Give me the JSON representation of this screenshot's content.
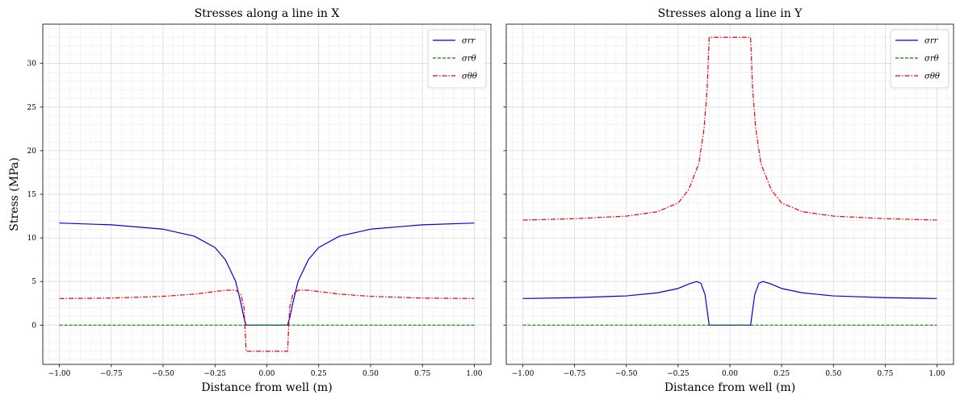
{
  "chart_data": [
    {
      "type": "line",
      "title": "Stresses along a line in X",
      "xlabel": "Distance from well (m)",
      "ylabel": "Stress (MPa)",
      "xlim": [
        -1.08,
        1.08
      ],
      "ylim": [
        -4.5,
        34.5
      ],
      "xticks": [
        "-1.00",
        "-0.75",
        "-0.50",
        "-0.25",
        "0.00",
        "0.25",
        "0.50",
        "0.75",
        "1.00"
      ],
      "yticks": [
        "0",
        "5",
        "10",
        "15",
        "20",
        "25",
        "30"
      ],
      "grid": true,
      "legend_position": "top-right",
      "series": [
        {
          "name": "σrr",
          "color": "#0000dd",
          "style": "solid",
          "x": [
            -1.0,
            -0.75,
            -0.5,
            -0.35,
            -0.25,
            -0.2,
            -0.15,
            -0.125,
            -0.11,
            -0.1,
            0.1,
            0.11,
            0.125,
            0.15,
            0.2,
            0.25,
            0.35,
            0.5,
            0.75,
            1.0
          ],
          "y": [
            11.7,
            11.5,
            11.0,
            10.2,
            8.9,
            7.5,
            5.0,
            2.5,
            0.8,
            0.0,
            0.0,
            0.8,
            2.5,
            5.0,
            7.5,
            8.9,
            10.2,
            11.0,
            11.5,
            11.7
          ]
        },
        {
          "name": "σrθ",
          "color": "#008000",
          "style": "dashed",
          "x": [
            -1.0,
            1.0
          ],
          "y": [
            0.0,
            0.0
          ]
        },
        {
          "name": "σθθ",
          "color": "#ee0000",
          "style": "dashdot",
          "x": [
            -1.0,
            -0.75,
            -0.5,
            -0.35,
            -0.25,
            -0.2,
            -0.15,
            -0.125,
            -0.11,
            -0.1,
            0.1,
            0.11,
            0.125,
            0.15,
            0.2,
            0.25,
            0.35,
            0.5,
            0.75,
            1.0
          ],
          "y": [
            3.05,
            3.1,
            3.3,
            3.55,
            3.85,
            4.0,
            4.0,
            3.5,
            2.0,
            -3.0,
            -3.0,
            2.0,
            3.5,
            4.0,
            4.0,
            3.85,
            3.55,
            3.3,
            3.1,
            3.05
          ]
        }
      ]
    },
    {
      "type": "line",
      "title": "Stresses along a line in Y",
      "xlabel": "Distance from well (m)",
      "ylabel": "",
      "xlim": [
        -1.08,
        1.08
      ],
      "ylim": [
        -4.5,
        34.5
      ],
      "xticks": [
        "-1.00",
        "-0.75",
        "-0.50",
        "-0.25",
        "0.00",
        "0.25",
        "0.50",
        "0.75",
        "1.00"
      ],
      "yticks": [
        "0",
        "5",
        "10",
        "15",
        "20",
        "25",
        "30"
      ],
      "grid": true,
      "legend_position": "top-right",
      "series": [
        {
          "name": "σrr",
          "color": "#0000dd",
          "style": "solid",
          "x": [
            -1.0,
            -0.75,
            -0.5,
            -0.35,
            -0.25,
            -0.2,
            -0.16,
            -0.14,
            -0.12,
            -0.1,
            0.1,
            0.12,
            0.14,
            0.16,
            0.2,
            0.25,
            0.35,
            0.5,
            0.75,
            1.0
          ],
          "y": [
            3.05,
            3.15,
            3.35,
            3.7,
            4.2,
            4.7,
            5.0,
            4.8,
            3.5,
            0.0,
            0.0,
            3.5,
            4.8,
            5.0,
            4.7,
            4.2,
            3.7,
            3.35,
            3.15,
            3.05
          ]
        },
        {
          "name": "σrθ",
          "color": "#008000",
          "style": "dashed",
          "x": [
            -1.0,
            1.0
          ],
          "y": [
            0.0,
            0.0
          ]
        },
        {
          "name": "σθθ",
          "color": "#ee0000",
          "style": "dashdot",
          "x": [
            -1.0,
            -0.75,
            -0.5,
            -0.35,
            -0.25,
            -0.2,
            -0.15,
            -0.125,
            -0.11,
            -0.1,
            0.1,
            0.11,
            0.125,
            0.15,
            0.2,
            0.25,
            0.35,
            0.5,
            0.75,
            1.0
          ],
          "y": [
            12.05,
            12.2,
            12.5,
            13.0,
            14.0,
            15.5,
            18.5,
            22.5,
            27.0,
            33.0,
            33.0,
            27.0,
            22.5,
            18.5,
            15.5,
            14.0,
            13.0,
            12.5,
            12.2,
            12.05
          ]
        }
      ]
    }
  ]
}
